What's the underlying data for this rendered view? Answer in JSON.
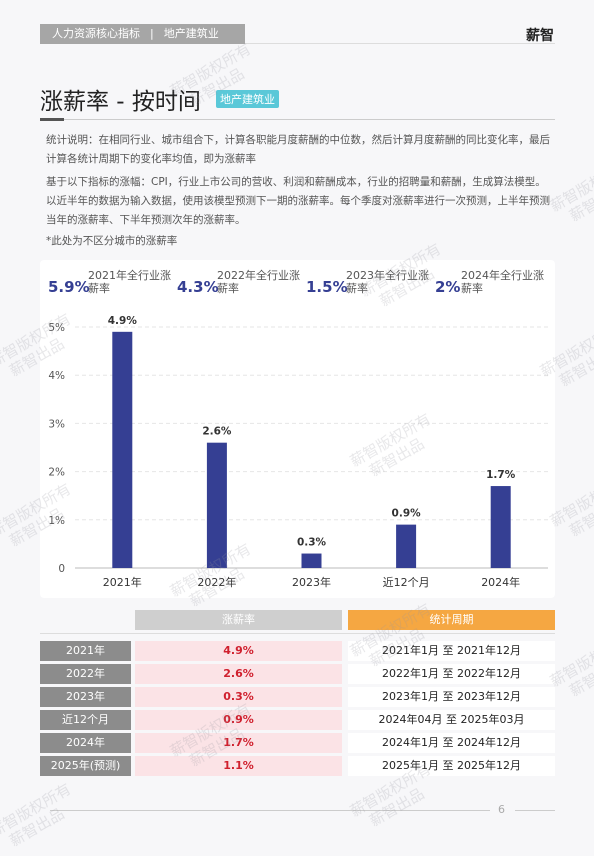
{
  "header": {
    "section": "人力资源核心指标",
    "separator": "|",
    "industry": "地产建筑业",
    "brand": "薪智"
  },
  "title": "涨薪率 - 按时间",
  "tag": "地产建筑业",
  "notes": [
    "统计说明：在相同行业、城市组合下，计算各职能月度薪酬的中位数，然后计算月度薪酬的同比变化率，最后计算各统计周期下的变化率均值，即为涨薪率",
    "基于以下指标的涨幅：CPI，行业上市公司的营收、利润和薪酬成本，行业的招聘量和薪酬，生成算法模型。以近半年的数据为输入数据，使用该模型预测下一期的涨薪率。每个季度对涨薪率进行一次预测，上半年预测当年的涨薪率、下半年预测次年的涨薪率。",
    "*此处为不区分城市的涨薪率"
  ],
  "kpis": [
    {
      "value": "5.9%",
      "label": "2021年全行业涨薪率"
    },
    {
      "value": "4.3%",
      "label": "2022年全行业涨薪率"
    },
    {
      "value": "1.5%",
      "label": "2023年全行业涨薪率"
    },
    {
      "value": "2%",
      "label": "2024年全行业涨薪率"
    }
  ],
  "chart_data": {
    "type": "bar",
    "categories": [
      "2021年",
      "2022年",
      "2023年",
      "近12个月",
      "2024年"
    ],
    "values": [
      4.9,
      2.6,
      0.3,
      0.9,
      1.7
    ],
    "value_labels": [
      "4.9%",
      "2.6%",
      "0.3%",
      "0.9%",
      "1.7%"
    ],
    "color": "#353f93",
    "ylim": [
      0,
      5
    ],
    "yticks": [
      0,
      {
        "value": 1,
        "label": "1%"
      },
      {
        "value": 2,
        "label": "2%"
      },
      {
        "value": 3,
        "label": "3%"
      },
      {
        "value": 4,
        "label": "4%"
      },
      {
        "value": 5,
        "label": "5%"
      }
    ],
    "grid": true
  },
  "table": {
    "headers": {
      "rate": "涨薪率",
      "period": "统计周期"
    },
    "rows": [
      [
        "2021年",
        "4.9%",
        "2021年1月 至 2021年12月"
      ],
      [
        "2022年",
        "2.6%",
        "2022年1月 至 2022年12月"
      ],
      [
        "2023年",
        "0.3%",
        "2023年1月 至 2023年12月"
      ],
      [
        "近12个月",
        "0.9%",
        "2024年04月 至 2025年03月"
      ],
      [
        "2024年",
        "1.7%",
        "2024年1月 至 2024年12月"
      ],
      [
        "2025年(预测)",
        "1.1%",
        "2025年1月 至 2025年12月"
      ]
    ]
  },
  "page_number": "6",
  "watermark": [
    "薪智版权所有",
    "薪智出品"
  ]
}
